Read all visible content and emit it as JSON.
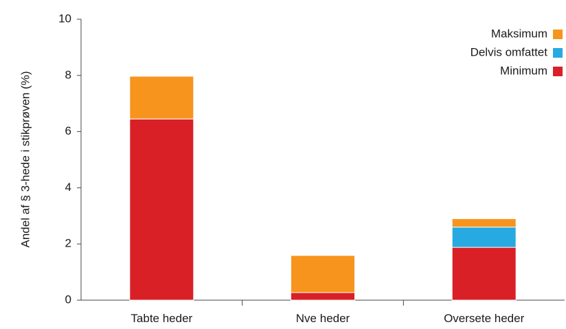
{
  "chart_data": {
    "type": "bar",
    "stacked": true,
    "categories": [
      "Tabte heder",
      "Nve heder",
      "Oversete heder"
    ],
    "series": [
      {
        "name": "Minimum",
        "color": "#d92027",
        "values": [
          6.45,
          0.27,
          1.88
        ]
      },
      {
        "name": "Delvis omfattet",
        "color": "#27a9e1",
        "values": [
          0,
          0,
          0.72
        ]
      },
      {
        "name": "Maksimum",
        "color": "#f7941d",
        "values": [
          1.52,
          1.32,
          0.3
        ]
      }
    ],
    "title": "",
    "xlabel": "",
    "ylabel": "Andel af § 3-hede i stikprøven (%)",
    "ylim": [
      0,
      10
    ],
    "yticks": [
      "0",
      "2",
      "4",
      "6",
      "8",
      "10"
    ],
    "grid": false,
    "legend_position": "top-right",
    "legend_order": [
      "Maksimum",
      "Delvis omfattet",
      "Minimum"
    ]
  }
}
